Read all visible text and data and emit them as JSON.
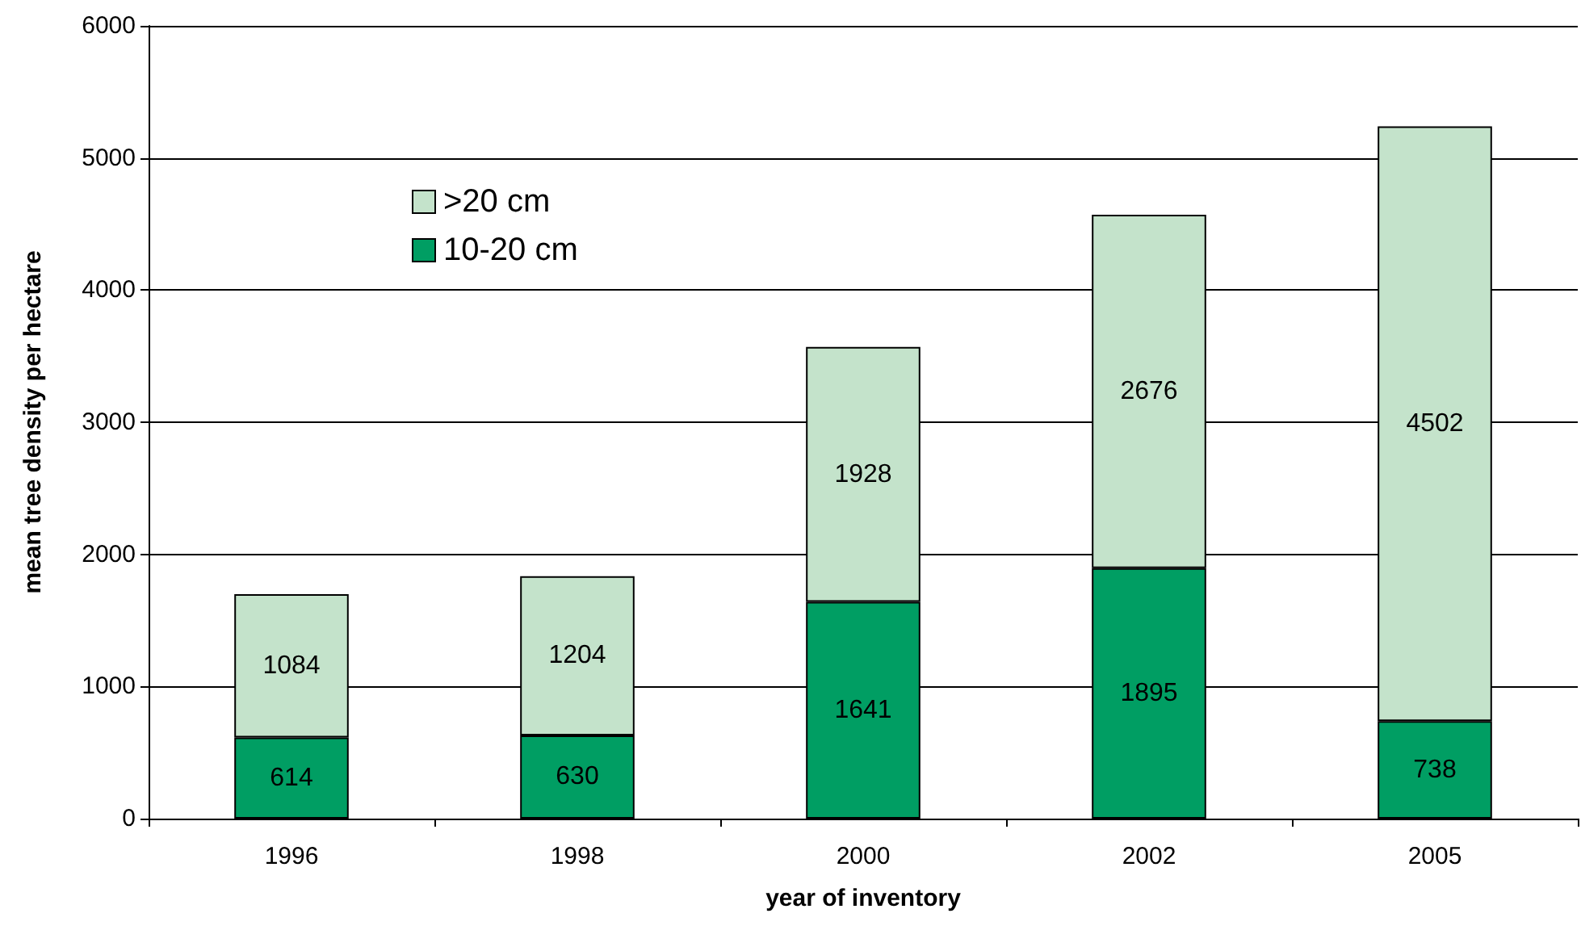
{
  "chart_data": {
    "type": "bar",
    "stacked": true,
    "xlabel": "year of inventory",
    "ylabel": "mean tree density per hectare",
    "categories": [
      "1996",
      "1998",
      "2000",
      "2002",
      "2005"
    ],
    "series": [
      {
        "name": "10-20 cm",
        "color": "#009e63",
        "values": [
          614,
          630,
          1641,
          1895,
          738
        ]
      },
      {
        "name": ">20 cm",
        "color": "#c4e3cb",
        "values": [
          1084,
          1204,
          1928,
          2676,
          4502
        ]
      }
    ],
    "ylim": [
      0,
      6000
    ],
    "yticks": [
      0,
      1000,
      2000,
      3000,
      4000,
      5000,
      6000
    ],
    "grid": "y",
    "legend": "top left",
    "data_labels": true
  }
}
